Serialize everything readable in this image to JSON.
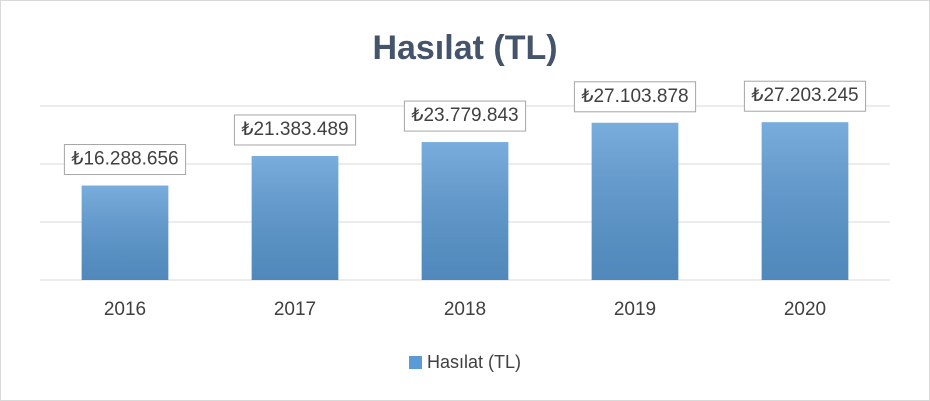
{
  "chart_data": {
    "type": "bar",
    "title": "Hasılat (TL)",
    "categories": [
      "2016",
      "2017",
      "2018",
      "2019",
      "2020"
    ],
    "series": [
      {
        "name": "Hasılat (TL)",
        "color": "#5b9bd5",
        "values": [
          16288656,
          21383489,
          23779843,
          27103878,
          27203245
        ],
        "value_labels": [
          "₺16.288.656",
          "₺21.383.489",
          "₺23.779.843",
          "₺27.103.878",
          "₺27.203.245"
        ]
      }
    ],
    "ylim": [
      0,
      30000000
    ],
    "yticks": [
      0,
      10000000,
      20000000,
      30000000
    ],
    "grid": true,
    "y_axis_labels": false,
    "legend": "bottom"
  }
}
